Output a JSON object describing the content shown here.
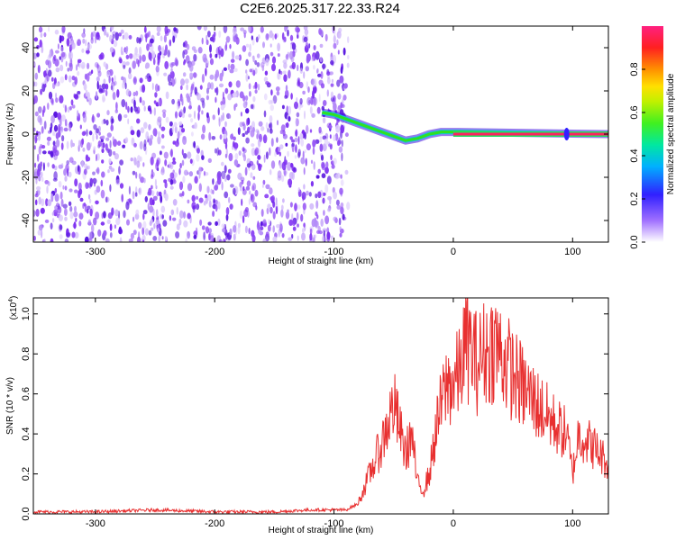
{
  "title": "C2E6.2025.317.22.33.R24",
  "chart_data": [
    {
      "type": "heatmap",
      "xlabel": "Height of straight line (km)",
      "ylabel": "Frequency (Hz)",
      "xlim": [
        -352,
        130
      ],
      "ylim": [
        -50,
        50
      ],
      "x_ticks": [
        "-300",
        "-200",
        "-100",
        "0",
        "100"
      ],
      "y_ticks": [
        "-40",
        "-20",
        "0",
        "20",
        "40"
      ],
      "noise_region_x": [
        -352,
        -88
      ],
      "signal_trace": [
        {
          "x": -110,
          "y": 10
        },
        {
          "x": -100,
          "y": 9
        },
        {
          "x": -90,
          "y": 7
        },
        {
          "x": -80,
          "y": 5
        },
        {
          "x": -70,
          "y": 3
        },
        {
          "x": -60,
          "y": 1
        },
        {
          "x": -50,
          "y": -1
        },
        {
          "x": -40,
          "y": -3
        },
        {
          "x": -30,
          "y": -2
        },
        {
          "x": -20,
          "y": 0
        },
        {
          "x": -10,
          "y": 1
        },
        {
          "x": 0,
          "y": 1
        },
        {
          "x": 130,
          "y": 0
        }
      ],
      "blip_at_x": 95,
      "colorbar": {
        "label": "Normalized spectral amplitude",
        "range": [
          0,
          1
        ],
        "ticks": [
          "0.0",
          "0.2",
          "0.4",
          "0.6",
          "0.8"
        ]
      }
    },
    {
      "type": "line",
      "xlabel": "Height of straight line (km)",
      "ylabel": "SNR (10 * v/v)",
      "multiplier": "(x10",
      "multiplier_exp": "4",
      "xlim": [
        -352,
        130
      ],
      "ylim": [
        0,
        1.08
      ],
      "x_ticks": [
        "-300",
        "-200",
        "-100",
        "0",
        "100"
      ],
      "y_ticks": [
        "0.0",
        "0.2",
        "0.4",
        "0.6",
        "0.8",
        "1.0"
      ],
      "line_color": "#e83030",
      "series": [
        {
          "x": [
            -352,
            -300,
            -250,
            -200,
            -150,
            -120,
            -100,
            -90,
            -80,
            -70,
            -60,
            -50,
            -40,
            -35,
            -30,
            -25,
            -20,
            -15,
            -10,
            -5,
            0,
            5,
            10,
            15,
            20,
            25,
            30,
            35,
            40,
            50,
            60,
            70,
            80,
            90,
            95,
            100,
            105,
            110,
            120,
            130
          ],
          "y": [
            0.01,
            0.01,
            0.02,
            0.01,
            0.01,
            0.02,
            0.02,
            0.02,
            0.05,
            0.2,
            0.35,
            0.55,
            0.3,
            0.4,
            0.15,
            0.12,
            0.2,
            0.4,
            0.55,
            0.65,
            0.65,
            0.7,
            0.85,
            0.82,
            0.75,
            0.8,
            0.82,
            0.85,
            0.8,
            0.7,
            0.62,
            0.55,
            0.48,
            0.42,
            0.4,
            0.2,
            0.4,
            0.38,
            0.32,
            0.25
          ]
        }
      ]
    }
  ]
}
